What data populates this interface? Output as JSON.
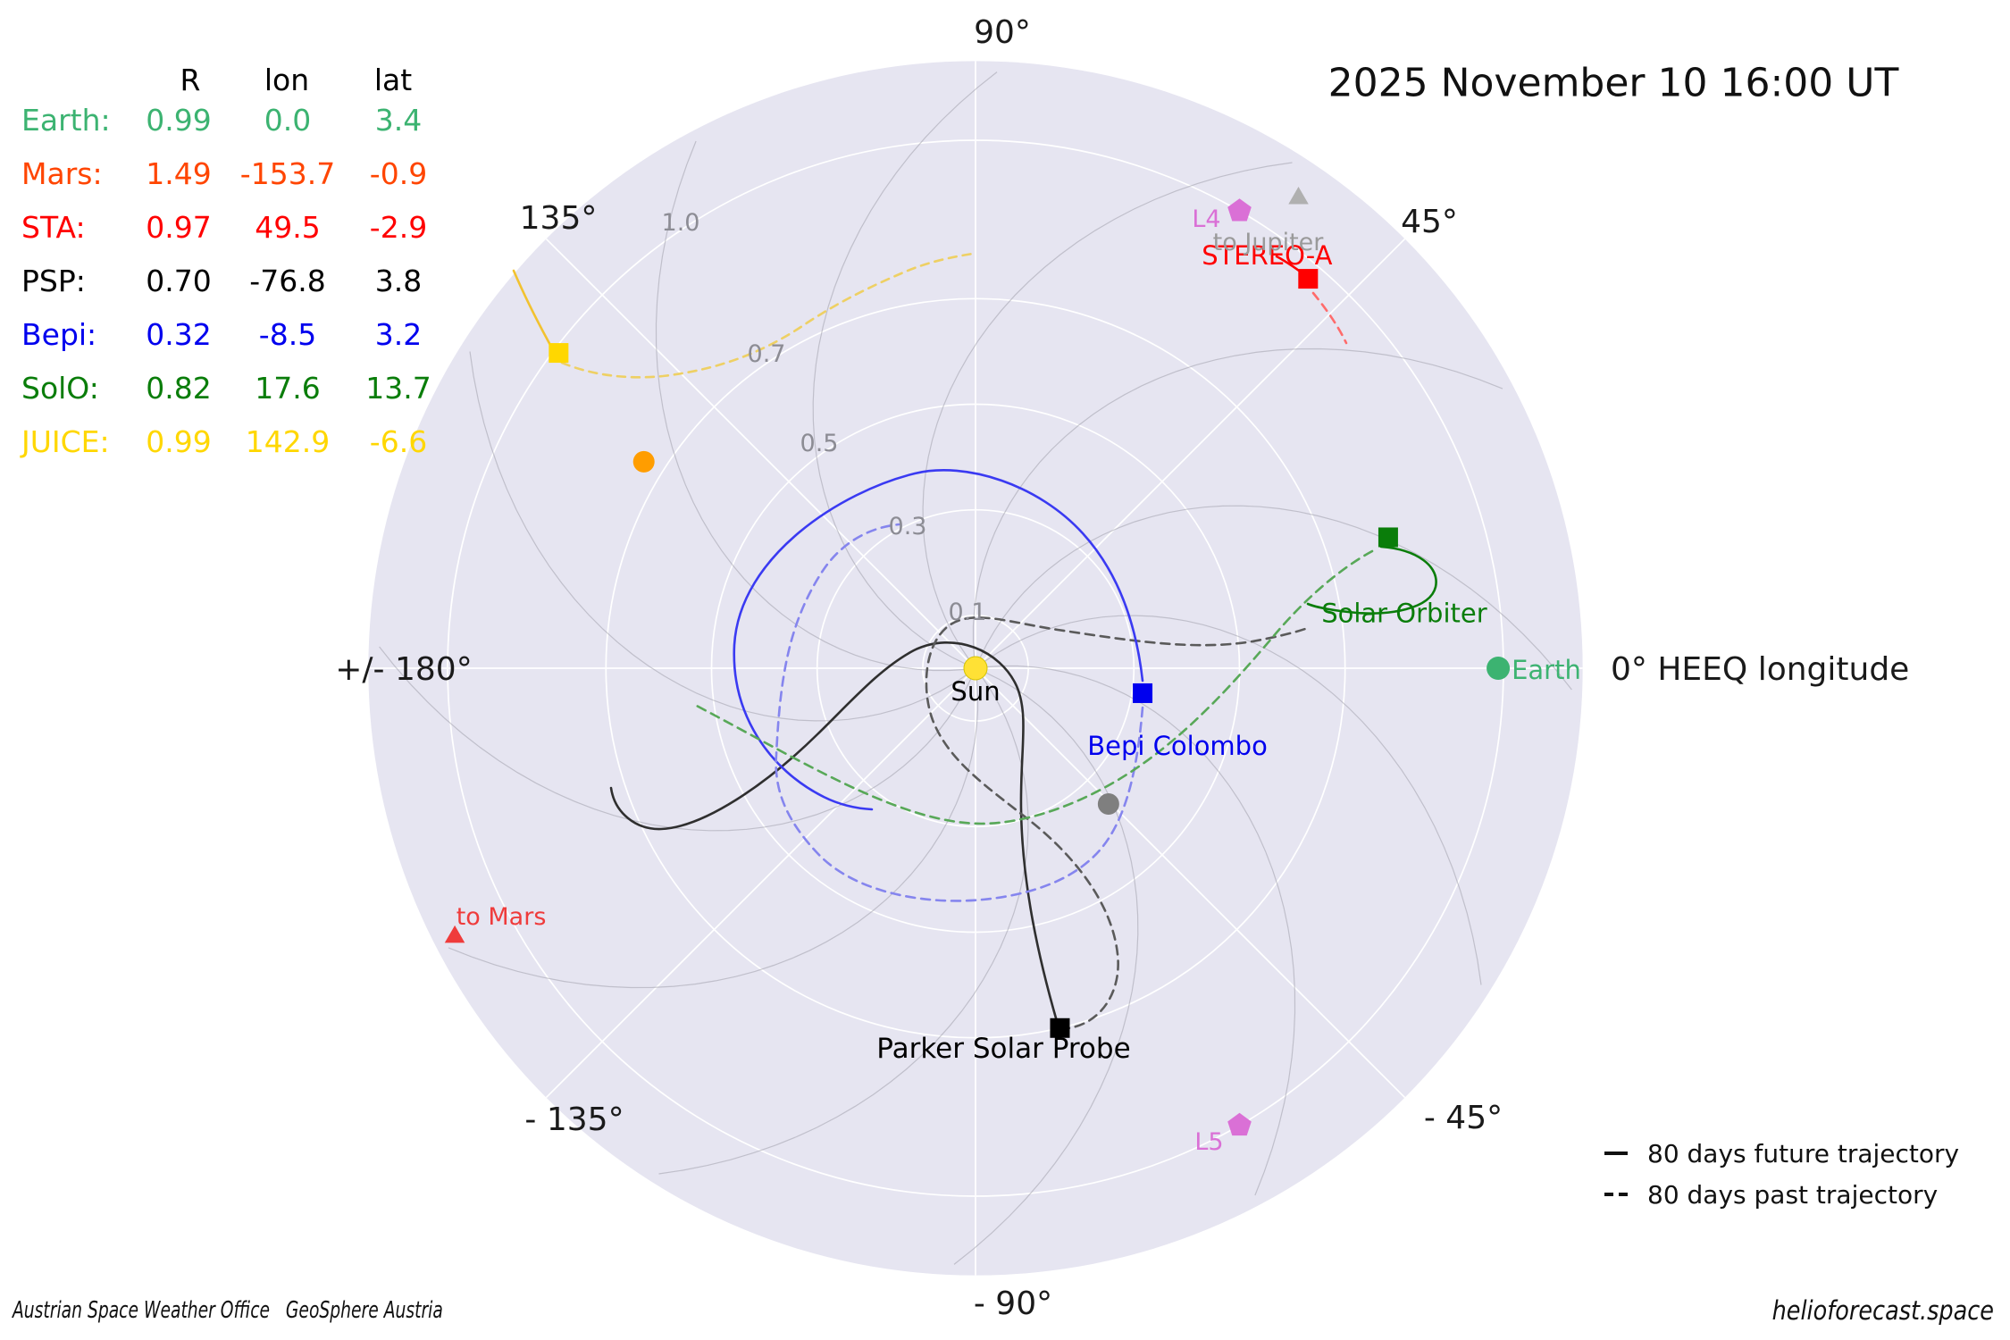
{
  "title": {
    "datetime": "2025 November 10  16:00 UT"
  },
  "table": {
    "headers": [
      "R",
      "lon",
      "lat"
    ],
    "rows": [
      {
        "name": "Earth:",
        "color": "#3cb371",
        "R": "0.99",
        "lon": "0.0",
        "lat": "3.4"
      },
      {
        "name": "Mars:",
        "color": "#ff4500",
        "R": "1.49",
        "lon": "-153.7",
        "lat": "-0.9"
      },
      {
        "name": "STA:",
        "color": "#ff0000",
        "R": "0.97",
        "lon": "49.5",
        "lat": "-2.9"
      },
      {
        "name": "PSP:",
        "color": "#000000",
        "R": "0.70",
        "lon": "-76.8",
        "lat": "3.8"
      },
      {
        "name": "Bepi:",
        "color": "#0000ee",
        "R": "0.32",
        "lon": "-8.5",
        "lat": "3.2"
      },
      {
        "name": "SolO:",
        "color": "#0a7d0a",
        "R": "0.82",
        "lon": "17.6",
        "lat": "13.7"
      },
      {
        "name": "JUICE:",
        "color": "#ffd700",
        "R": "0.99",
        "lon": "142.9",
        "lat": "-6.6"
      }
    ]
  },
  "plot": {
    "background_color": "#e6e5f1",
    "grid_color": "#ffffff",
    "spiral_color": "#a0a0ac",
    "angle_labels": [
      "90°",
      "45°",
      "135°",
      "+/- 180°",
      "0° HEEQ longitude",
      "- 135°",
      "- 45°",
      "- 90°"
    ],
    "radial_labels": [
      "0.1",
      "0.3",
      "0.5",
      "0.7",
      "1.0"
    ],
    "sun_label": "Sun"
  },
  "legend": {
    "future": "80 days future trajectory",
    "past": "80 days past trajectory"
  },
  "footer": {
    "left": "Austrian Space Weather Office   GeoSphere Austria",
    "right": "helioforecast.space"
  },
  "chart_data": {
    "type": "polar_scatter",
    "title": "2025 November 10  16:00 UT",
    "coordinate_frame": "HEEQ longitude, 0 deg toward Earth",
    "r_unit": "AU",
    "r_ticks": [
      0.1,
      0.3,
      0.5,
      0.7,
      1.0
    ],
    "r_max": 1.15,
    "theta_ticks_deg": [
      90,
      45,
      135,
      180,
      0,
      -135,
      -45,
      -90
    ],
    "grid": true,
    "legend_position": "lower right",
    "trajectories": {
      "future_days": 80,
      "past_days": 80,
      "shown_for": [
        "STEREO-A",
        "Parker Solar Probe",
        "Bepi Colombo",
        "Solar Orbiter",
        "JUICE"
      ]
    },
    "objects": [
      {
        "name": "Sun",
        "label": "Sun",
        "marker": "circle",
        "color": "#ffe135",
        "r": 0.0,
        "lon": 0.0
      },
      {
        "name": "Earth",
        "label": "Earth",
        "marker": "circle",
        "color": "#3cb371",
        "r": 0.99,
        "lon": 0.0,
        "lat": 3.4
      },
      {
        "name": "STEREO-A",
        "label": "STEREO-A",
        "marker": "square",
        "color": "#ff0000",
        "r": 0.97,
        "lon": 49.5,
        "lat": -2.9
      },
      {
        "name": "Parker Solar Probe",
        "label": "Parker Solar Probe",
        "marker": "square",
        "color": "#000000",
        "r": 0.7,
        "lon": -76.8,
        "lat": 3.8
      },
      {
        "name": "Bepi Colombo",
        "label": "Bepi Colombo",
        "marker": "square",
        "color": "#0000ee",
        "r": 0.32,
        "lon": -8.5,
        "lat": 3.2
      },
      {
        "name": "Solar Orbiter",
        "label": "Solar Orbiter",
        "marker": "square",
        "color": "#0a7d0a",
        "r": 0.82,
        "lon": 17.6,
        "lat": 13.7
      },
      {
        "name": "JUICE",
        "label": null,
        "marker": "square",
        "color": "#ffd700",
        "r": 0.99,
        "lon": 142.9,
        "lat": -6.6
      },
      {
        "name": "Venus",
        "label": null,
        "marker": "circle",
        "color": "#ff9d00",
        "r": 0.74,
        "lon": 148.1
      },
      {
        "name": "Mercury",
        "label": null,
        "marker": "circle",
        "color": "#7f7f7f",
        "r": 0.36,
        "lon": -45.6
      },
      {
        "name": "L4",
        "label": "L4",
        "marker": "pentagon",
        "color": "#da70d6",
        "r": 1.0,
        "lon": 60.0
      },
      {
        "name": "L5",
        "label": "L5",
        "marker": "pentagon",
        "color": "#da70d6",
        "r": 1.0,
        "lon": -60.0
      },
      {
        "name": "to Jupiter",
        "label": "to Jupiter",
        "marker": "triangle",
        "color": "#b0b0b0",
        "r": 1.08,
        "lon": 55.5
      },
      {
        "name": "to Mars",
        "label": "to Mars",
        "marker": "triangle",
        "color": "#ef3b3b",
        "r": 1.11,
        "lon": -152.7
      },
      {
        "name": "Mars (off plot)",
        "label": null,
        "marker": "none",
        "color": "#ff4500",
        "r": 1.49,
        "lon": -153.7,
        "lat": -0.9
      }
    ]
  }
}
